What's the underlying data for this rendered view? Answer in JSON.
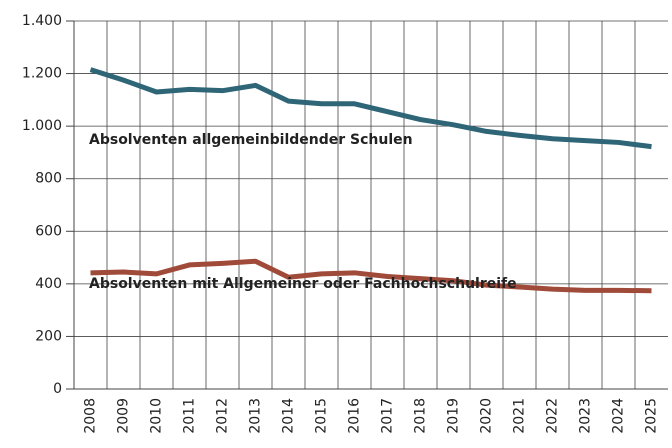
{
  "chart_data": {
    "type": "line",
    "categories": [
      "2008",
      "2009",
      "2010",
      "2011",
      "2012",
      "2013",
      "2014",
      "2015",
      "2016",
      "2017",
      "2018",
      "2019",
      "2020",
      "2021",
      "2022",
      "2023",
      "2024",
      "2025"
    ],
    "series": [
      {
        "name": "Absolventen allgemeinbildender Schulen",
        "color": "#2e6577",
        "values": [
          1215,
          1175,
          1130,
          1140,
          1135,
          1155,
          1095,
          1085,
          1085,
          1055,
          1025,
          1005,
          980,
          965,
          952,
          945,
          938,
          922
        ]
      },
      {
        "name": "Absolventen mit Allgemeiner oder Fachhochschulreife",
        "color": "#a04a3a",
        "values": [
          442,
          445,
          438,
          472,
          478,
          486,
          425,
          438,
          442,
          428,
          420,
          412,
          395,
          388,
          380,
          375,
          375,
          374
        ]
      }
    ],
    "ylim": [
      0,
      1400
    ],
    "yticks": [
      0,
      200,
      400,
      600,
      800,
      {
        "value": 1000,
        "label": "1.000"
      },
      {
        "value": 1200,
        "label": "1.200"
      },
      {
        "value": 1400,
        "label": "1.400"
      }
    ],
    "grid": true
  }
}
